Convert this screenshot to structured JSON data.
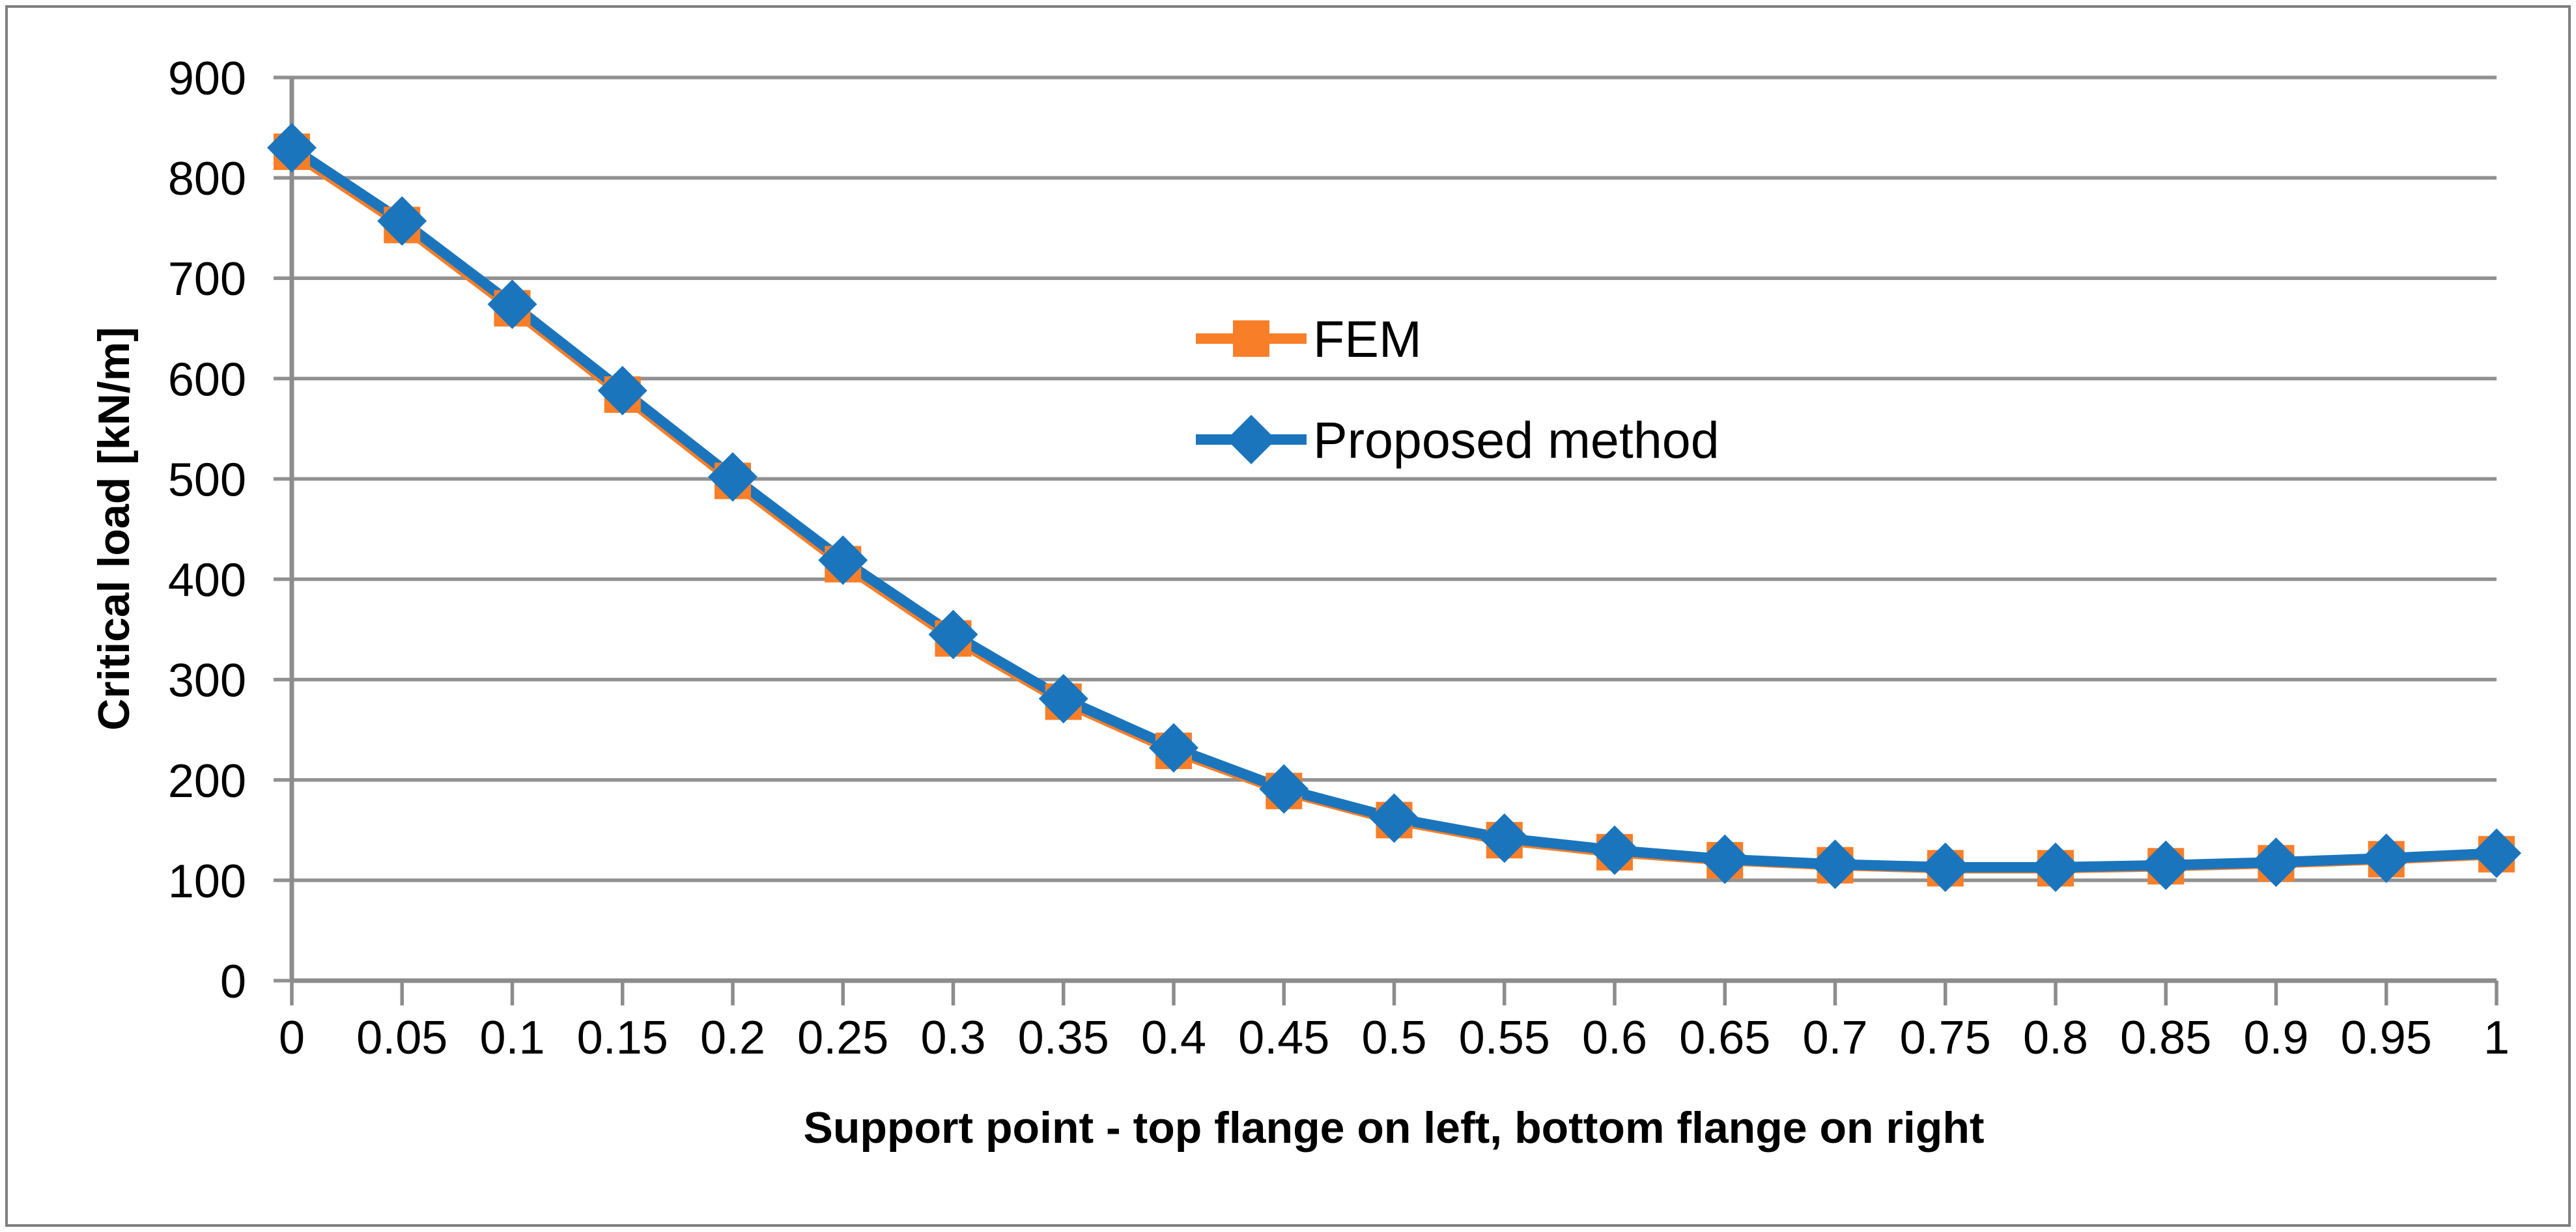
{
  "chart_data": {
    "type": "line",
    "title": "",
    "xlabel": "Support point - top flange on left, bottom flange on right",
    "ylabel": "Critical load [kN/m]",
    "x": [
      0,
      0.05,
      0.1,
      0.15,
      0.2,
      0.25,
      0.3,
      0.35,
      0.4,
      0.45,
      0.5,
      0.55,
      0.6,
      0.65,
      0.7,
      0.75,
      0.8,
      0.85,
      0.9,
      0.95,
      1
    ],
    "x_tick_labels": [
      "0",
      "0.05",
      "0.1",
      "0.15",
      "0.2",
      "0.25",
      "0.3",
      "0.35",
      "0.4",
      "0.45",
      "0.5",
      "0.55",
      "0.6",
      "0.65",
      "0.7",
      "0.75",
      "0.8",
      "0.85",
      "0.9",
      "0.95",
      "1"
    ],
    "y_ticks": [
      0,
      100,
      200,
      300,
      400,
      500,
      600,
      700,
      800,
      900
    ],
    "y_tick_labels": [
      "0",
      "100",
      "200",
      "300",
      "400",
      "500",
      "600",
      "700",
      "800",
      "900"
    ],
    "xlim": [
      0,
      1
    ],
    "ylim": [
      0,
      900
    ],
    "grid": "horizontal-only",
    "legend_position": "inside-upper-center",
    "series": [
      {
        "name": "FEM",
        "marker": "square",
        "color": "#F87E28",
        "values": [
          826,
          753,
          670,
          584,
          498,
          415,
          341,
          278,
          229,
          189,
          160,
          140,
          128,
          120,
          115,
          112,
          112,
          114,
          117,
          121,
          126
        ]
      },
      {
        "name": "Proposed method",
        "marker": "diamond",
        "color": "#1B75BC",
        "values": [
          830,
          757,
          674,
          588,
          502,
          419,
          345,
          281,
          232,
          191,
          162,
          142,
          130,
          121,
          116,
          113,
          113,
          115,
          118,
          122,
          127
        ]
      }
    ],
    "colors": {
      "gridline": "#919191",
      "axis": "#8C8C8C",
      "text": "#000000",
      "frame_border": "#7F7F7F",
      "background": "#FFFFFF"
    }
  }
}
